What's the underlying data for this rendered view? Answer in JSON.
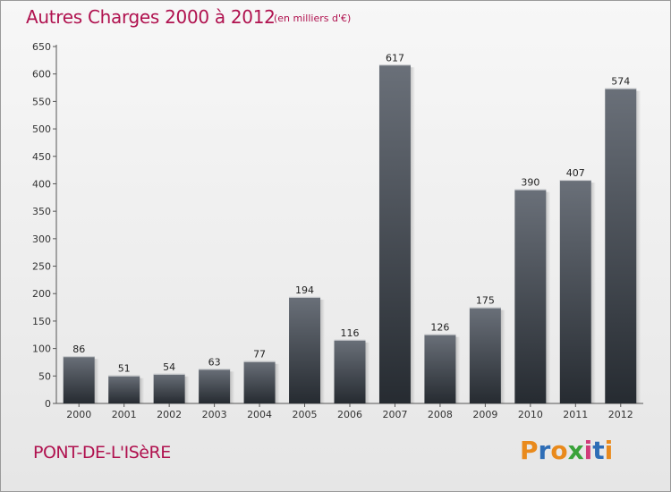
{
  "header": {
    "title": "Autres Charges 2000 à 2012",
    "subtitle": "(en milliers d'€)"
  },
  "footer": {
    "location": "PONT-DE-L'ISèRE",
    "brand": "Proxiti",
    "brand_colors": [
      "#e98a1c",
      "#2e6db6",
      "#e98a1c",
      "#3aa23a",
      "#d13b7a",
      "#2e6db6",
      "#e98a1c"
    ]
  },
  "colors": {
    "title": "#b0124f",
    "bar_top": "#6a7079",
    "bar_bottom": "#262b31"
  },
  "chart_data": {
    "type": "bar",
    "title": "Autres Charges 2000 à 2012",
    "subtitle": "(en milliers d'€)",
    "categories": [
      "2000",
      "2001",
      "2002",
      "2003",
      "2004",
      "2005",
      "2006",
      "2007",
      "2008",
      "2009",
      "2010",
      "2011",
      "2012"
    ],
    "values": [
      86,
      51,
      54,
      63,
      77,
      194,
      116,
      617,
      126,
      175,
      390,
      407,
      574
    ],
    "ylim": [
      0,
      650
    ],
    "yticks": [
      0,
      50,
      100,
      150,
      200,
      250,
      300,
      350,
      400,
      450,
      500,
      550,
      600,
      650
    ],
    "grid": false,
    "legend": "none"
  }
}
